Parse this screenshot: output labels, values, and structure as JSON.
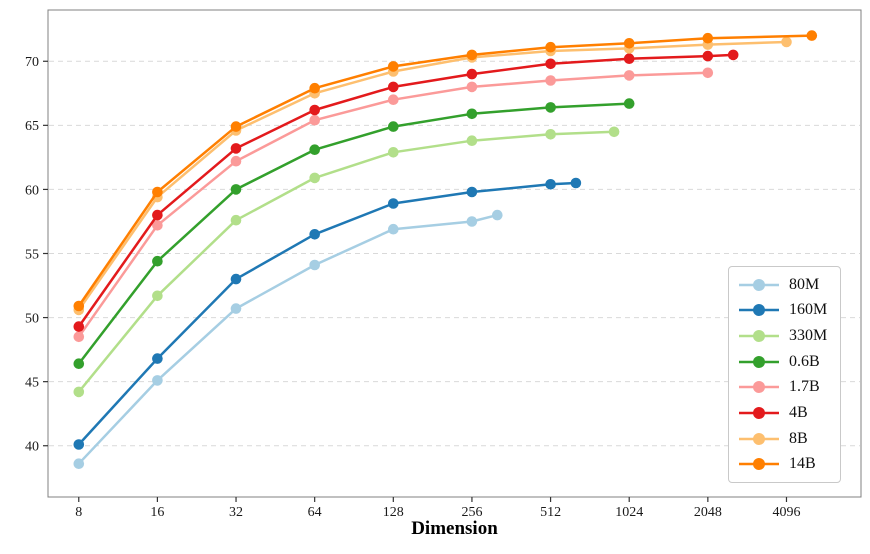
{
  "chart_data": {
    "type": "line",
    "title": "",
    "xlabel": "Dimension",
    "ylabel": "",
    "x_scale": "log2",
    "xlim": [
      6.1,
      7900
    ],
    "ylim": [
      36,
      74
    ],
    "grid": "horizontal-dashed",
    "legend_position": "lower-right",
    "x_ticks": [
      {
        "value": 8,
        "label": "8"
      },
      {
        "value": 16,
        "label": "16"
      },
      {
        "value": 32,
        "label": "32"
      },
      {
        "value": 64,
        "label": "64"
      },
      {
        "value": 128,
        "label": "128"
      },
      {
        "value": 256,
        "label": "256"
      },
      {
        "value": 512,
        "label": "512"
      },
      {
        "value": 1024,
        "label": "1024"
      },
      {
        "value": 2048,
        "label": "2048"
      },
      {
        "value": 4096,
        "label": "4096"
      }
    ],
    "y_ticks": [
      40,
      45,
      50,
      55,
      60,
      65,
      70
    ],
    "series": [
      {
        "name": "80M",
        "color": "#a6cee3",
        "x": [
          8,
          16,
          32,
          64,
          128,
          256,
          320
        ],
        "y": [
          38.6,
          45.1,
          50.7,
          54.1,
          56.9,
          57.5,
          58.0
        ]
      },
      {
        "name": "160M",
        "color": "#1f78b4",
        "x": [
          8,
          16,
          32,
          64,
          128,
          256,
          512,
          640
        ],
        "y": [
          40.1,
          46.8,
          53.0,
          56.5,
          58.9,
          59.8,
          60.4,
          60.5
        ]
      },
      {
        "name": "330M",
        "color": "#b2df8a",
        "x": [
          8,
          16,
          32,
          64,
          128,
          256,
          512,
          896
        ],
        "y": [
          44.2,
          51.7,
          57.6,
          60.9,
          62.9,
          63.8,
          64.3,
          64.5
        ]
      },
      {
        "name": "0.6B",
        "color": "#33a02c",
        "x": [
          8,
          16,
          32,
          64,
          128,
          256,
          512,
          1024
        ],
        "y": [
          46.4,
          54.4,
          60.0,
          63.1,
          64.9,
          65.9,
          66.4,
          66.7
        ]
      },
      {
        "name": "1.7B",
        "color": "#fb9a99",
        "x": [
          8,
          16,
          32,
          64,
          128,
          256,
          512,
          1024,
          2048
        ],
        "y": [
          48.5,
          57.2,
          62.2,
          65.4,
          67.0,
          68.0,
          68.5,
          68.9,
          69.1
        ]
      },
      {
        "name": "4B",
        "color": "#e31a1c",
        "x": [
          8,
          16,
          32,
          64,
          128,
          256,
          512,
          1024,
          2048,
          2560
        ],
        "y": [
          49.3,
          58.0,
          63.2,
          66.2,
          68.0,
          69.0,
          69.8,
          70.2,
          70.4,
          70.5
        ]
      },
      {
        "name": "8B",
        "color": "#fdbf6f",
        "x": [
          8,
          16,
          32,
          64,
          128,
          256,
          512,
          1024,
          2048,
          4096
        ],
        "y": [
          50.6,
          59.4,
          64.6,
          67.5,
          69.2,
          70.3,
          70.8,
          71.0,
          71.3,
          71.5
        ]
      },
      {
        "name": "14B",
        "color": "#ff7f00",
        "x": [
          8,
          16,
          32,
          64,
          128,
          256,
          512,
          1024,
          2048,
          5120
        ],
        "y": [
          50.9,
          59.8,
          64.9,
          67.9,
          69.6,
          70.5,
          71.1,
          71.4,
          71.8,
          72.0
        ]
      }
    ],
    "style": {
      "line_width": 2.5,
      "marker_radius": 5.3,
      "grid_color": "#d9d9d9",
      "spine_color": "#808080",
      "background": "#ffffff"
    }
  }
}
